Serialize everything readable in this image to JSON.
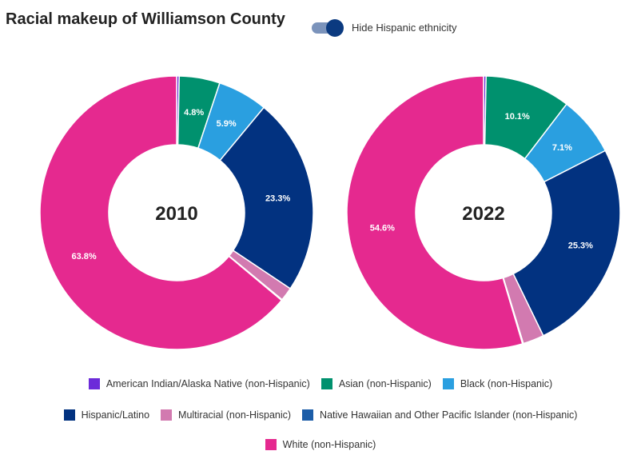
{
  "title": "Racial makeup of Williamson County",
  "toggle": {
    "label": "Hide Hispanic ethnicity",
    "on": true
  },
  "chart_data": [
    {
      "type": "pie",
      "title": "2010",
      "categories": [
        "American Indian/Alaska Native (non-Hispanic)",
        "Asian (non-Hispanic)",
        "Black (non-Hispanic)",
        "Hispanic/Latino",
        "Multiracial (non-Hispanic)",
        "Native Hawaiian and Other Pacific Islander (non-Hispanic)",
        "White (non-Hispanic)"
      ],
      "values": [
        0.3,
        4.8,
        5.9,
        23.3,
        1.6,
        0.1,
        63.8
      ],
      "labels": [
        "",
        "4.8%",
        "5.9%",
        "23.3%",
        "",
        "",
        "63.8%"
      ]
    },
    {
      "type": "pie",
      "title": "2022",
      "categories": [
        "American Indian/Alaska Native (non-Hispanic)",
        "Asian (non-Hispanic)",
        "Black (non-Hispanic)",
        "Hispanic/Latino",
        "Multiracial (non-Hispanic)",
        "Native Hawaiian and Other Pacific Islander (non-Hispanic)",
        "White (non-Hispanic)"
      ],
      "values": [
        0.3,
        10.1,
        7.1,
        25.3,
        2.5,
        0.1,
        54.6
      ],
      "labels": [
        "",
        "10.1%",
        "7.1%",
        "25.3%",
        "",
        "",
        "54.6%"
      ]
    }
  ],
  "colors": [
    "#6c2bd9",
    "#00916e",
    "#2a9fe0",
    "#023280",
    "#d27ab0",
    "#1c5da8",
    "#e5298f"
  ],
  "legend": [
    [
      "American Indian/Alaska Native (non-Hispanic)",
      "Asian (non-Hispanic)",
      "Black (non-Hispanic)"
    ],
    [
      "Hispanic/Latino",
      "Multiracial (non-Hispanic)",
      "Native Hawaiian and Other Pacific Islander (non-Hispanic)"
    ],
    [
      "White (non-Hispanic)"
    ]
  ]
}
